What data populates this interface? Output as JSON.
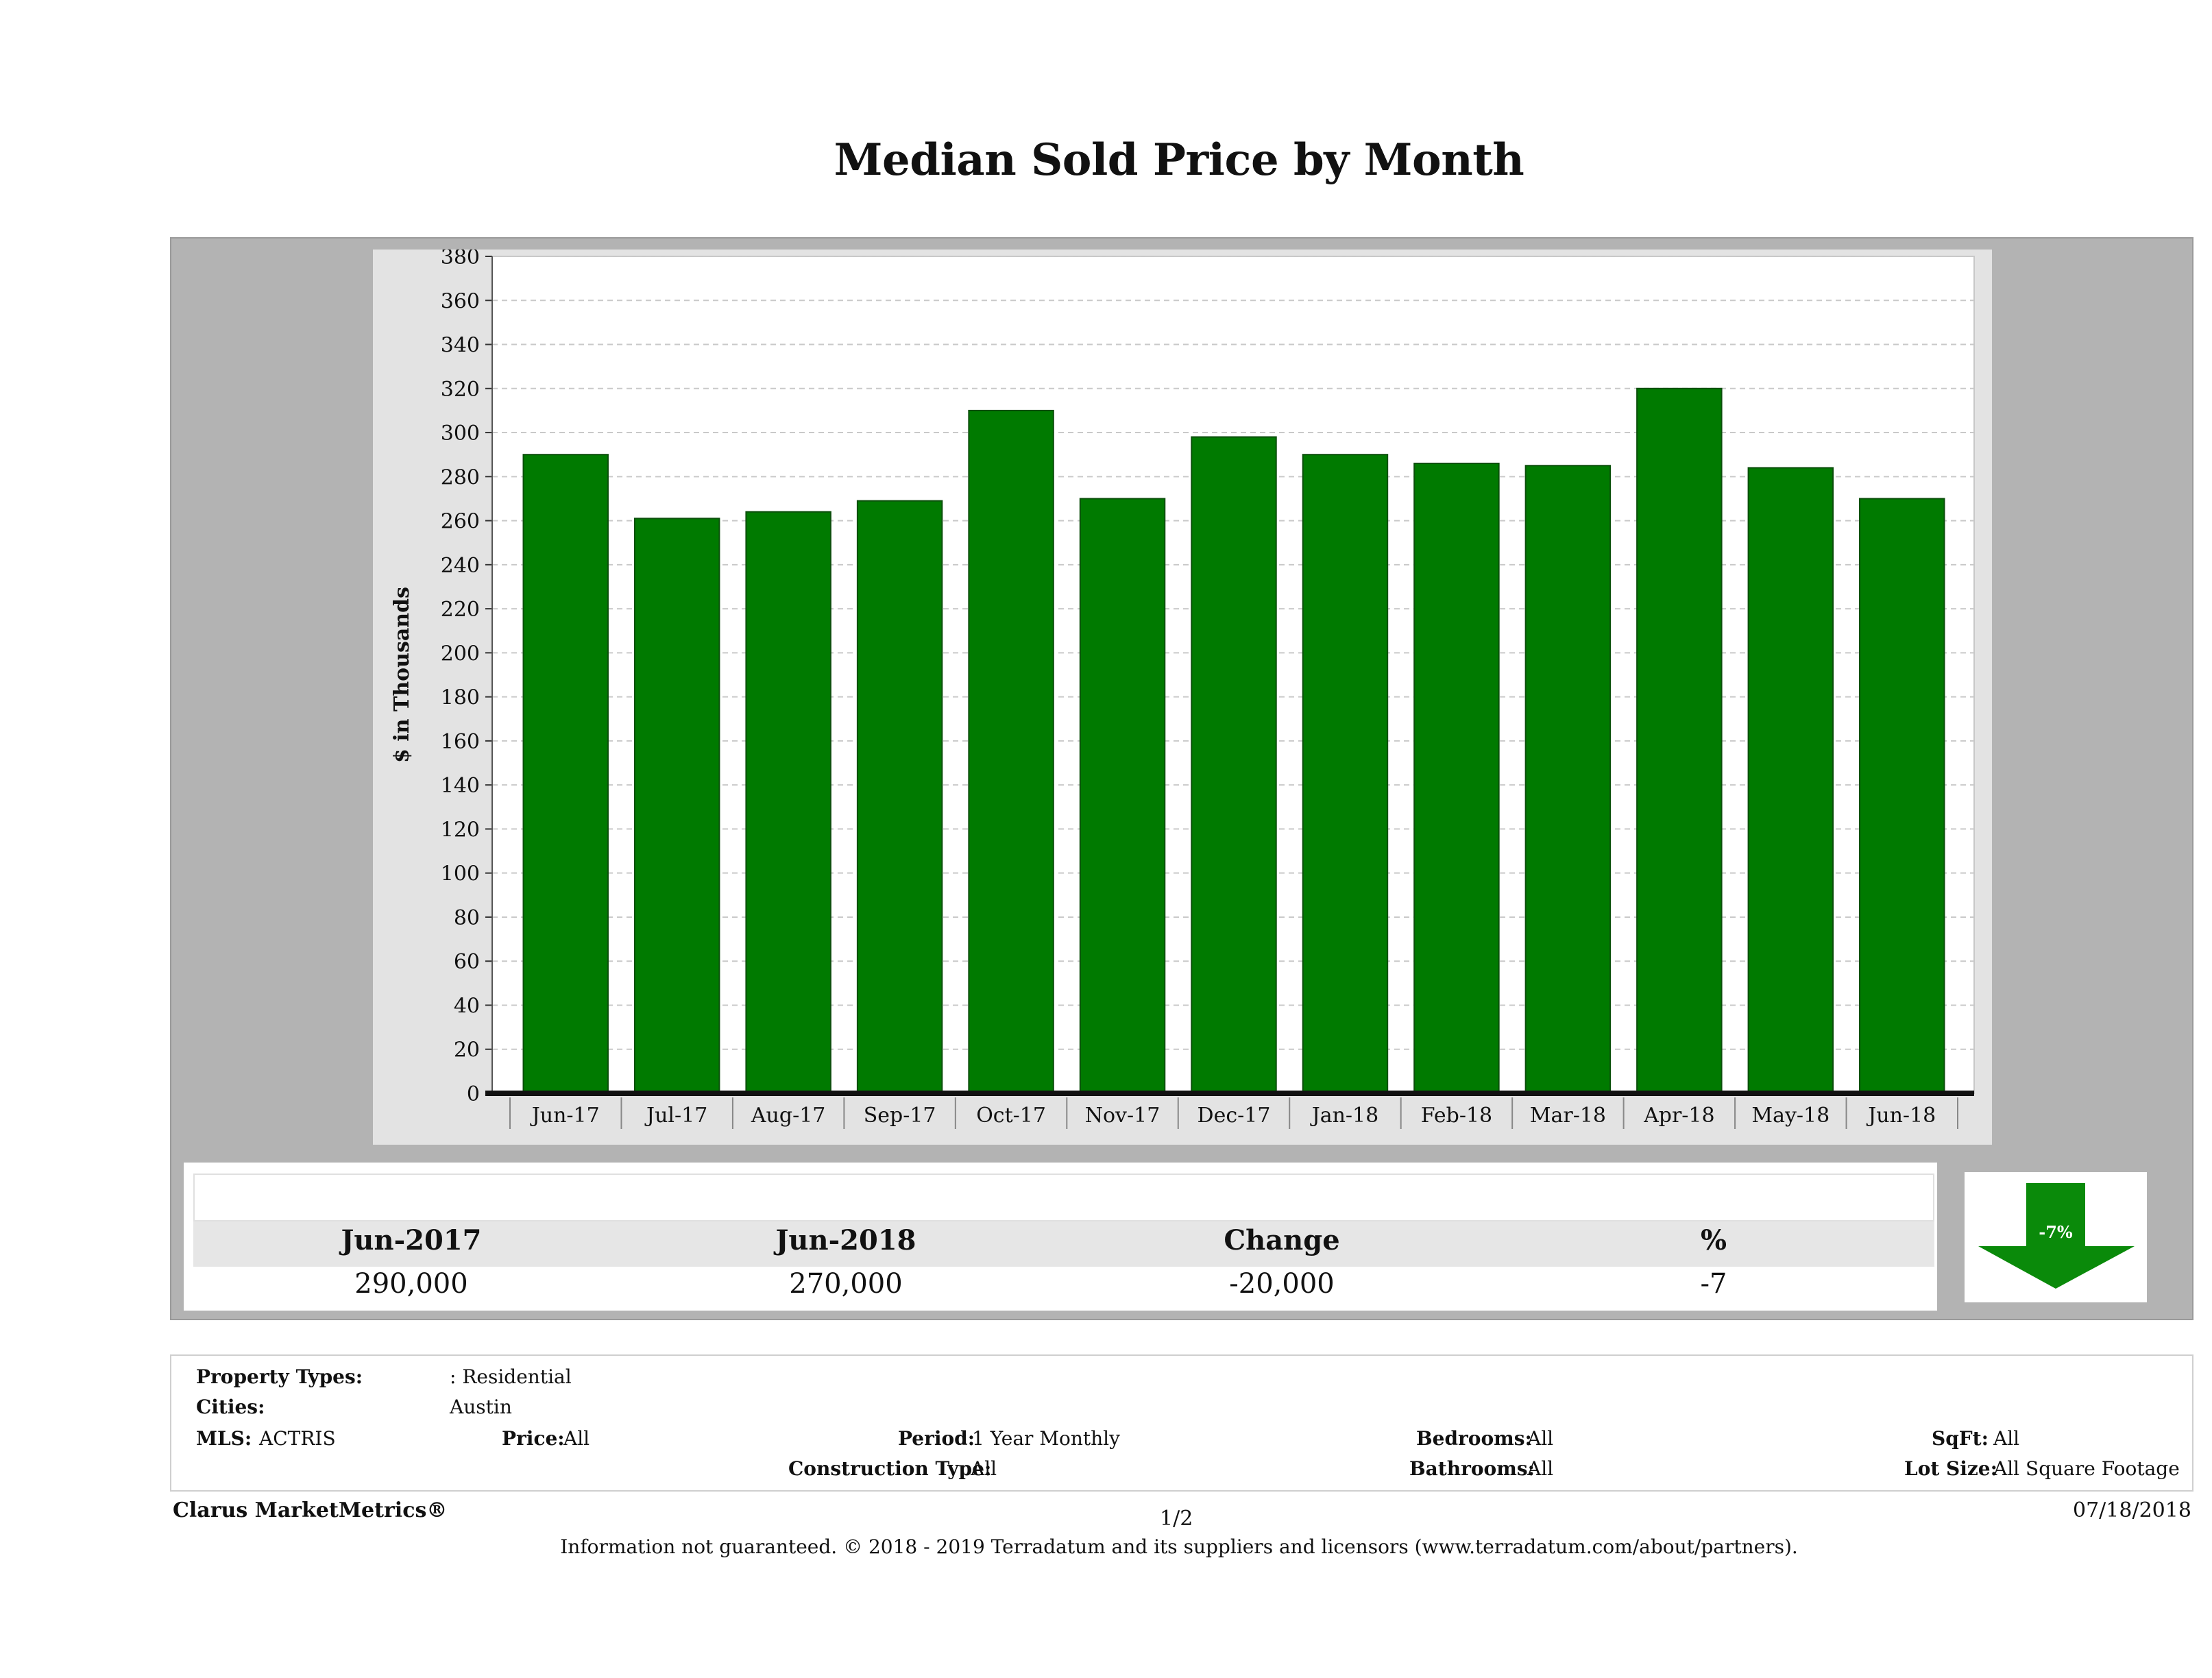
{
  "title": "Median Sold Price by Month",
  "chart_data": {
    "type": "bar",
    "title": "Median Sold Price by Month",
    "ylabel": "$ in Thousands",
    "xlabel": "",
    "categories": [
      "Jun-17",
      "Jul-17",
      "Aug-17",
      "Sep-17",
      "Oct-17",
      "Nov-17",
      "Dec-17",
      "Jan-18",
      "Feb-18",
      "Mar-18",
      "Apr-18",
      "May-18",
      "Jun-18"
    ],
    "values": [
      290,
      261,
      264,
      269,
      310,
      270,
      298,
      290,
      286,
      285,
      320,
      284,
      270
    ],
    "ylim": [
      0,
      380
    ],
    "yticks": [
      0,
      20,
      40,
      60,
      80,
      100,
      120,
      140,
      160,
      180,
      200,
      220,
      240,
      260,
      280,
      300,
      320,
      340,
      360,
      380
    ],
    "grid": true,
    "bar_color": "#007a00"
  },
  "summary": {
    "headers": [
      "Jun-2017",
      "Jun-2018",
      "Change",
      "%"
    ],
    "values": [
      "290,000",
      "270,000",
      "-20,000",
      "-7"
    ],
    "badge": "-7%",
    "badge_color": "#0a8a0a",
    "badge_icon": "down-arrow-icon"
  },
  "filters": {
    "property_types_label": "Property Types:",
    "property_types_value": ": Residential",
    "cities_label": "Cities:",
    "cities_value": "Austin",
    "mls_label": "MLS:",
    "mls_value": "ACTRIS",
    "price_label": "Price:",
    "price_value": "All",
    "period_label": "Period:",
    "period_value": "1 Year Monthly",
    "construction_label": "Construction Type:",
    "construction_value": "All",
    "bedrooms_label": "Bedrooms:",
    "bedrooms_value": "All",
    "bathrooms_label": "Bathrooms:",
    "bathrooms_value": "All",
    "sqft_label": "SqFt:",
    "sqft_value": "All",
    "lotsize_label": "Lot Size:",
    "lotsize_value": "All Square Footage"
  },
  "footer": {
    "brand": "Clarus MarketMetrics®",
    "page": "1/2",
    "date": "07/18/2018",
    "disclaimer": "Information not guaranteed. © 2018 - 2019 Terradatum and its suppliers and licensors (www.terradatum.com/about/partners)."
  }
}
